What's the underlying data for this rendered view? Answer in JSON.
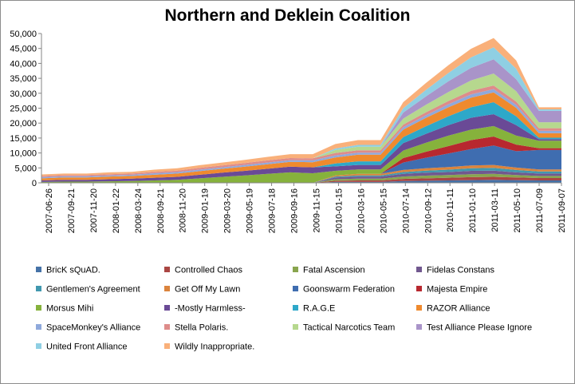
{
  "chart_data": {
    "type": "area",
    "stacked": true,
    "title": "Northern and Deklein Coalition",
    "xlabel": "",
    "ylabel": "",
    "ylim": [
      0,
      50000
    ],
    "y_ticks": [
      "0",
      "5,000",
      "10,000",
      "15,000",
      "20,000",
      "25,000",
      "30,000",
      "35,000",
      "40,000",
      "45,000",
      "50,000"
    ],
    "x_ticks": [
      "2007-06-26",
      "2007-09-21",
      "2007-11-20",
      "2008-01-22",
      "2008-03-24",
      "2008-09-21",
      "2008-11-20",
      "2009-01-19",
      "2009-03-20",
      "2009-05-19",
      "2009-07-18",
      "2009-09-16",
      "2009-11-15",
      "2010-01-15",
      "2010-03-16",
      "2010-05-15",
      "2010-07-14",
      "2010-09-12",
      "2010-11-11",
      "2011-01-10",
      "2011-03-11",
      "2011-05-10",
      "2011-07-09",
      "2011-09-07"
    ],
    "legend_position": "bottom",
    "series": [
      {
        "name": "BricK sQuAD.",
        "color": "#4572a7",
        "values": [
          0,
          0,
          0,
          0,
          0,
          0,
          0,
          0,
          0,
          0,
          0,
          0,
          0,
          300,
          300,
          300,
          600,
          700,
          800,
          900,
          1000,
          900,
          800,
          800
        ]
      },
      {
        "name": "Controlled Chaos",
        "color": "#aa4643",
        "values": [
          0,
          0,
          0,
          0,
          0,
          0,
          0,
          0,
          0,
          0,
          0,
          0,
          0,
          400,
          500,
          500,
          700,
          800,
          900,
          1000,
          1000,
          900,
          800,
          800
        ]
      },
      {
        "name": "Fatal Ascension",
        "color": "#89a54e",
        "values": [
          0,
          0,
          0,
          0,
          0,
          0,
          0,
          0,
          0,
          0,
          0,
          0,
          0,
          500,
          600,
          600,
          800,
          900,
          900,
          1000,
          1000,
          800,
          700,
          700
        ]
      },
      {
        "name": "Fidelas Constans",
        "color": "#71588f",
        "values": [
          0,
          0,
          0,
          0,
          0,
          0,
          0,
          0,
          0,
          0,
          0,
          0,
          0,
          600,
          700,
          700,
          900,
          1000,
          1000,
          1100,
          1100,
          900,
          800,
          800
        ]
      },
      {
        "name": "Gentlemen's Agreement",
        "color": "#4198af",
        "values": [
          0,
          0,
          0,
          0,
          0,
          0,
          0,
          0,
          0,
          0,
          0,
          0,
          0,
          300,
          400,
          400,
          600,
          700,
          800,
          900,
          900,
          800,
          700,
          700
        ]
      },
      {
        "name": "Get Off My Lawn",
        "color": "#db843d",
        "values": [
          0,
          0,
          0,
          0,
          0,
          0,
          0,
          0,
          0,
          0,
          0,
          0,
          0,
          400,
          500,
          500,
          700,
          800,
          900,
          900,
          1000,
          800,
          700,
          700
        ]
      },
      {
        "name": "Goonswarm Federation",
        "color": "#3f6db0",
        "values": [
          0,
          0,
          0,
          0,
          0,
          0,
          0,
          0,
          0,
          0,
          0,
          0,
          0,
          0,
          0,
          0,
          2500,
          3500,
          4500,
          5500,
          6500,
          5500,
          6500,
          6500
        ]
      },
      {
        "name": "Majesta Empire",
        "color": "#b8282f",
        "values": [
          0,
          0,
          0,
          0,
          0,
          0,
          0,
          0,
          0,
          0,
          0,
          0,
          0,
          0,
          0,
          0,
          1500,
          2000,
          2500,
          3000,
          3000,
          2200,
          600,
          600
        ]
      },
      {
        "name": "Morsus Mihi",
        "color": "#86b23c",
        "values": [
          300,
          400,
          400,
          500,
          600,
          800,
          1000,
          1500,
          2000,
          2500,
          3000,
          3500,
          3200,
          1500,
          1500,
          1500,
          2500,
          3000,
          3500,
          3500,
          3500,
          3000,
          2500,
          2500
        ]
      },
      {
        "name": "-Mostly Harmless-",
        "color": "#6a4a96",
        "values": [
          500,
          600,
          600,
          700,
          800,
          900,
          1000,
          1200,
          1400,
          1500,
          1700,
          1900,
          2000,
          1500,
          1500,
          1500,
          2500,
          3000,
          3500,
          4000,
          4000,
          3500,
          500,
          500
        ]
      },
      {
        "name": "R.A.G.E",
        "color": "#2ea8c9",
        "values": [
          0,
          0,
          0,
          0,
          0,
          0,
          0,
          0,
          0,
          0,
          0,
          0,
          0,
          1000,
          1200,
          1200,
          2000,
          2500,
          3000,
          3500,
          4000,
          3000,
          500,
          500
        ]
      },
      {
        "name": "RAZOR Alliance",
        "color": "#ef8a2e",
        "values": [
          700,
          800,
          800,
          900,
          900,
          1000,
          1100,
          1200,
          1300,
          1400,
          1500,
          1600,
          1700,
          2000,
          2200,
          2200,
          2500,
          2800,
          3000,
          3200,
          3300,
          2800,
          1500,
          1500
        ]
      },
      {
        "name": "SpaceMonkey's Alliance",
        "color": "#8fa9dc",
        "values": [
          400,
          400,
          400,
          400,
          400,
          500,
          500,
          500,
          500,
          600,
          600,
          600,
          600,
          700,
          700,
          700,
          800,
          900,
          1000,
          1100,
          1100,
          1000,
          800,
          800
        ]
      },
      {
        "name": "Stella Polaris.",
        "color": "#de8c8a",
        "values": [
          400,
          400,
          400,
          400,
          400,
          500,
          500,
          600,
          600,
          600,
          700,
          700,
          700,
          800,
          800,
          800,
          900,
          1000,
          1100,
          1200,
          1200,
          1100,
          900,
          900
        ]
      },
      {
        "name": "Tactical Narcotics Team",
        "color": "#b6d88e",
        "values": [
          0,
          0,
          0,
          0,
          0,
          0,
          0,
          0,
          0,
          0,
          0,
          0,
          0,
          1000,
          1200,
          1200,
          2000,
          2500,
          3000,
          3500,
          4000,
          3500,
          2000,
          2000
        ]
      },
      {
        "name": "Test Alliance Please Ignore",
        "color": "#a994c9",
        "values": [
          0,
          0,
          0,
          0,
          0,
          0,
          0,
          0,
          0,
          0,
          0,
          0,
          0,
          0,
          0,
          0,
          2000,
          2800,
          3600,
          4200,
          4800,
          4000,
          3800,
          3800
        ]
      },
      {
        "name": "United Front Alliance",
        "color": "#8fcfe3",
        "values": [
          0,
          0,
          0,
          0,
          0,
          0,
          0,
          0,
          0,
          0,
          0,
          0,
          0,
          500,
          600,
          600,
          1500,
          2200,
          2800,
          3500,
          4000,
          3500,
          500,
          500
        ]
      },
      {
        "name": "Wildly Inappropriate.",
        "color": "#f9b07a",
        "values": [
          500,
          500,
          500,
          600,
          600,
          700,
          800,
          900,
          1000,
          1100,
          1200,
          1300,
          1400,
          1500,
          1600,
          1600,
          2000,
          2300,
          2600,
          2900,
          3100,
          2800,
          700,
          700
        ]
      }
    ]
  }
}
